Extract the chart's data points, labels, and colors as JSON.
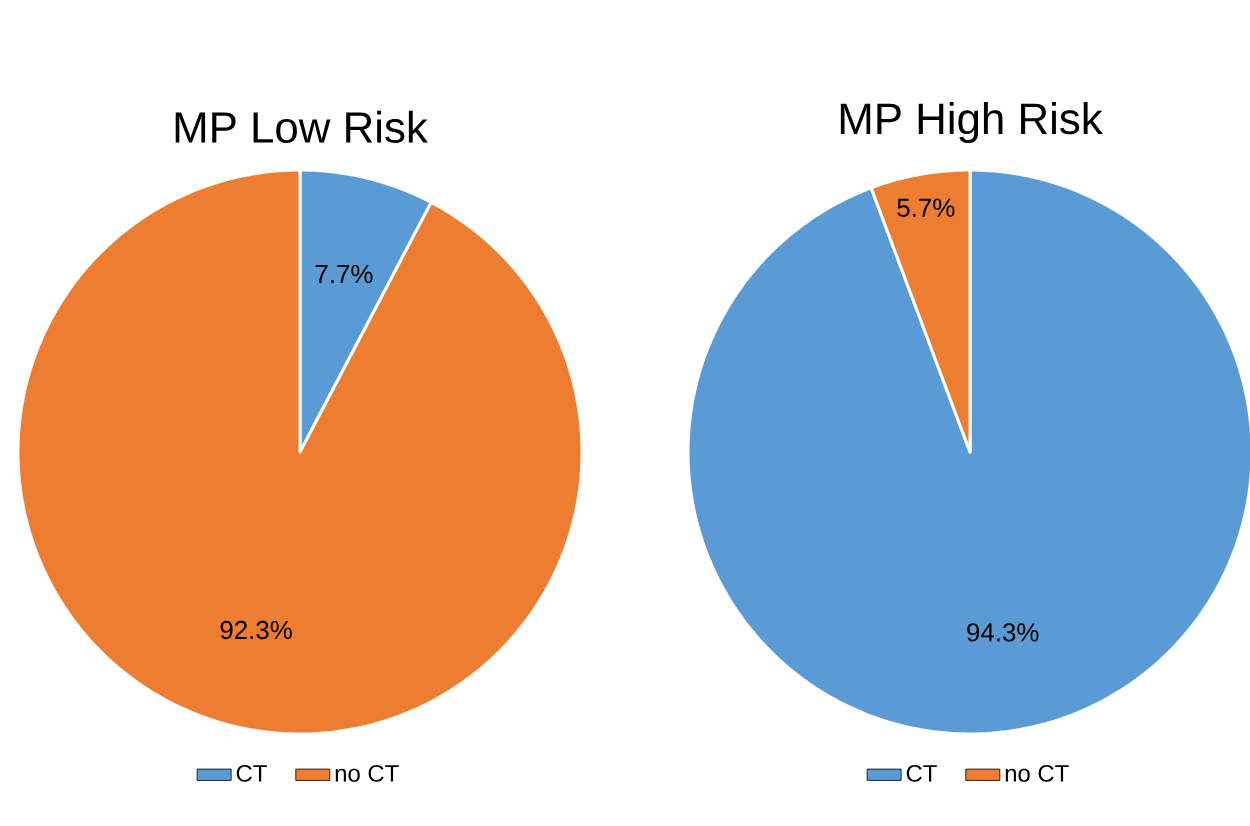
{
  "chart_data": [
    {
      "type": "pie",
      "title": "MP Low Risk",
      "categories": [
        "CT",
        "no CT"
      ],
      "values": [
        7.7,
        92.3
      ],
      "colors": [
        "#5b9bd5",
        "#ed7d31"
      ],
      "value_labels": [
        "7.7%",
        "92.3%"
      ],
      "legend": "bottom"
    },
    {
      "type": "pie",
      "title": "MP High Risk",
      "categories": [
        "CT",
        "no CT"
      ],
      "values": [
        94.3,
        5.7
      ],
      "colors": [
        "#5b9bd5",
        "#ed7d31"
      ],
      "value_labels": [
        "94.3%",
        "5.7%"
      ],
      "legend": "bottom"
    }
  ]
}
